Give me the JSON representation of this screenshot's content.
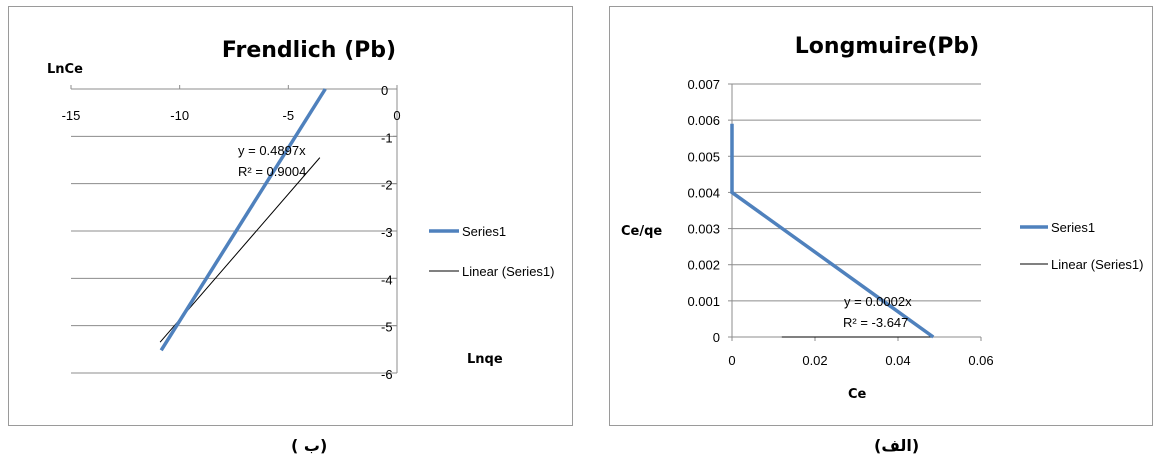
{
  "chart_data": [
    {
      "type": "line",
      "title": "Frendlich (Pb)",
      "xlabel": "Lnqe",
      "ylabel": "LnCe",
      "xlim": [
        -15,
        0
      ],
      "ylim": [
        -6,
        0
      ],
      "x_ticks": [
        "-15",
        "-10",
        "-5",
        "0"
      ],
      "y_ticks": [
        "0",
        "-1",
        "-2",
        "-3",
        "-4",
        "-5",
        "-6"
      ],
      "grid": "horizontal",
      "legend": "right",
      "series": [
        {
          "name": "Series1",
          "x": [
            -10.85,
            -3.3
          ],
          "y": [
            -5.52,
            0.0
          ],
          "color": "#4f81bd"
        },
        {
          "name": "Linear (Series1)",
          "x": [
            -10.9,
            -3.55
          ],
          "y": [
            -5.35,
            -1.45
          ],
          "color": "#000000"
        }
      ],
      "annotations": [
        "y = 0.4897x",
        "R² = 0.9004"
      ]
    },
    {
      "type": "line",
      "title": "Longmuire(Pb)",
      "xlabel": "Ce",
      "ylabel": "Ce/qe",
      "xlim": [
        0,
        0.06
      ],
      "ylim": [
        0,
        0.007
      ],
      "x_ticks": [
        "0",
        "0.02",
        "0.04",
        "0.06"
      ],
      "y_ticks": [
        "0",
        "0.001",
        "0.002",
        "0.003",
        "0.004",
        "0.005",
        "0.006",
        "0.007"
      ],
      "grid": "horizontal",
      "legend": "right",
      "series": [
        {
          "name": "Series1",
          "x": [
            0.0,
            0.0,
            0.0485
          ],
          "y": [
            0.0059,
            0.004,
            0.0
          ],
          "color": "#4f81bd"
        },
        {
          "name": "Linear (Series1)",
          "x": [
            0.012,
            0.048
          ],
          "y": [
            0.0,
            0.0
          ],
          "color": "#000000"
        }
      ],
      "annotations": [
        "y = 0.0002x",
        "R² = -3.647"
      ]
    }
  ],
  "captions": {
    "left": "( ب)",
    "right": "(الف)"
  }
}
